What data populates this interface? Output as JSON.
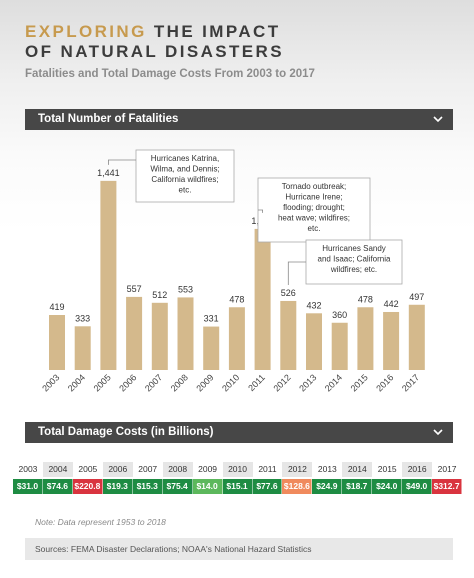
{
  "header": {
    "title_accent": "EXPLORING",
    "title_rest": "THE IMPACT",
    "title_line2": "OF NATURAL DISASTERS",
    "subtitle": "Fatalities and Total Damage Costs From 2003 to 2017"
  },
  "sections": {
    "fatalities_label": "Total Number of Fatalities",
    "costs_label": "Total Damage Costs (in Billions)"
  },
  "colors": {
    "bar": "#d4b98c",
    "accent": "#c79a4e",
    "section_bg": "#474747",
    "cost_green": "#1e8c43",
    "cost_light_green": "#5cb85c",
    "cost_orange": "#f08a5d",
    "cost_red": "#d9343f"
  },
  "chart_data": {
    "type": "bar",
    "title": "Total Number of Fatalities",
    "categories": [
      "2003",
      "2004",
      "2005",
      "2006",
      "2007",
      "2008",
      "2009",
      "2010",
      "2011",
      "2012",
      "2013",
      "2014",
      "2015",
      "2016",
      "2017"
    ],
    "values": [
      419,
      333,
      1441,
      557,
      512,
      553,
      331,
      478,
      1075,
      526,
      432,
      360,
      478,
      442,
      497
    ],
    "value_labels": [
      "419",
      "333",
      "1,441",
      "557",
      "512",
      "553",
      "331",
      "478",
      "1,075",
      "526",
      "432",
      "360",
      "478",
      "442",
      "497"
    ],
    "ylim": [
      0,
      1600
    ],
    "grid": false,
    "annotations": [
      {
        "category": "2005",
        "text": [
          "Hurricanes Katrina,",
          "Wilma, and Dennis;",
          "California wildfires;",
          "etc."
        ]
      },
      {
        "category": "2011",
        "text": [
          "Tornado outbreak;",
          "Hurricane Irene;",
          "flooding; drought;",
          "heat wave; wildfires;",
          "etc."
        ]
      },
      {
        "category": "2012",
        "text": [
          "Hurricanes Sandy",
          "and Isaac; California",
          "wildfires; etc."
        ]
      }
    ]
  },
  "costs": {
    "years": [
      "2003",
      "2004",
      "2005",
      "2006",
      "2007",
      "2008",
      "2009",
      "2010",
      "2011",
      "2012",
      "2013",
      "2014",
      "2015",
      "2016",
      "2017"
    ],
    "values": [
      "$31.0",
      "$74.6",
      "$220.8",
      "$19.3",
      "$15.3",
      "$75.4",
      "$14.0",
      "$15.1",
      "$77.6",
      "$128.6",
      "$24.9",
      "$18.7",
      "$24.0",
      "$49.0",
      "$312.7"
    ],
    "levels": [
      "green",
      "green",
      "red",
      "green",
      "green",
      "green",
      "light_green",
      "green",
      "green",
      "orange",
      "green",
      "green",
      "green",
      "green",
      "red"
    ]
  },
  "footer": {
    "note": "Note: Data represent 1953 to 2018",
    "sources": "Sources: FEMA Disaster Declarations; NOAA's National Hazard Statistics"
  }
}
